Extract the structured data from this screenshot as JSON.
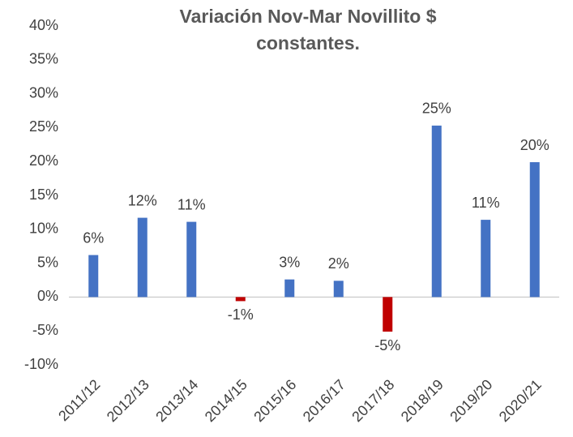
{
  "chart_data": {
    "type": "bar",
    "title": "Variación Nov-Mar Novillito $ constantes.",
    "categories": [
      "2011/12",
      "2012/13",
      "2013/14",
      "2014/15",
      "2015/16",
      "2016/17",
      "2017/18",
      "2018/19",
      "2019/20",
      "2020/21"
    ],
    "values": [
      6.2,
      11.7,
      11.1,
      -0.6,
      2.6,
      2.4,
      -5.1,
      25.3,
      11.4,
      19.9
    ],
    "value_labels": [
      "6%",
      "12%",
      "11%",
      "-1%",
      "3%",
      "2%",
      "-5%",
      "25%",
      "11%",
      "20%"
    ],
    "color": "#4472c4",
    "negative_color": "#c00000",
    "ylim": [
      -10,
      40
    ],
    "yticks": [
      {
        "value": -10,
        "label": "-10%"
      },
      {
        "value": -5,
        "label": "-5%"
      },
      {
        "value": 0,
        "label": "0%"
      },
      {
        "value": 5,
        "label": "5%"
      },
      {
        "value": 10,
        "label": "10%"
      },
      {
        "value": 15,
        "label": "15%"
      },
      {
        "value": 20,
        "label": "20%"
      },
      {
        "value": 25,
        "label": "25%"
      },
      {
        "value": 30,
        "label": "30%"
      },
      {
        "value": 35,
        "label": "35%"
      },
      {
        "value": 40,
        "label": "40%"
      }
    ],
    "grid": false
  }
}
